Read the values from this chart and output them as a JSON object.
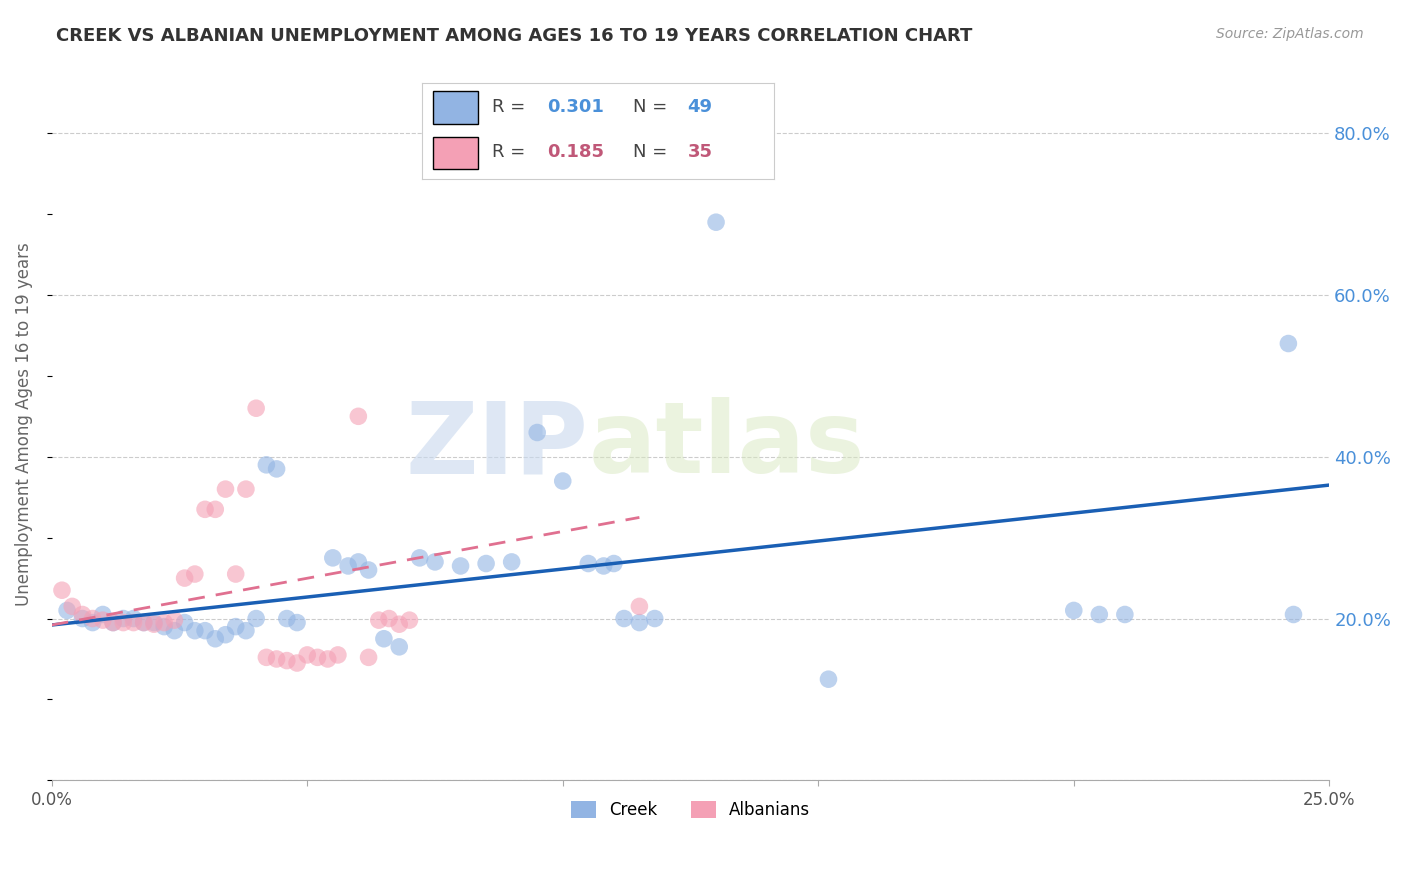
{
  "title": "CREEK VS ALBANIAN UNEMPLOYMENT AMONG AGES 16 TO 19 YEARS CORRELATION CHART",
  "source": "Source: ZipAtlas.com",
  "ylabel": "Unemployment Among Ages 16 to 19 years",
  "xlim": [
    0.0,
    0.25
  ],
  "ylim": [
    0.0,
    0.88
  ],
  "xticks": [
    0.0,
    0.05,
    0.1,
    0.15,
    0.2,
    0.25
  ],
  "xtick_labels": [
    "0.0%",
    "",
    "",
    "",
    "",
    "25.0%"
  ],
  "yticks_right": [
    0.0,
    0.2,
    0.4,
    0.6,
    0.8
  ],
  "ytick_labels_right": [
    "",
    "20.0%",
    "40.0%",
    "60.0%",
    "80.0%"
  ],
  "legend_R_creek": "0.301",
  "legend_N_creek": "49",
  "legend_R_albanian": "0.185",
  "legend_N_albanian": "35",
  "creek_color": "#92b4e3",
  "albanian_color": "#f4a0b5",
  "trend_creek_color": "#1a5fb4",
  "trend_albanian_color": "#e07090",
  "background_color": "#ffffff",
  "grid_color": "#cccccc",
  "watermark_zip": "ZIP",
  "watermark_atlas": "atlas",
  "creek_scatter": [
    [
      0.003,
      0.21
    ],
    [
      0.006,
      0.2
    ],
    [
      0.008,
      0.195
    ],
    [
      0.01,
      0.205
    ],
    [
      0.012,
      0.195
    ],
    [
      0.014,
      0.2
    ],
    [
      0.016,
      0.2
    ],
    [
      0.018,
      0.195
    ],
    [
      0.02,
      0.195
    ],
    [
      0.022,
      0.19
    ],
    [
      0.024,
      0.185
    ],
    [
      0.026,
      0.195
    ],
    [
      0.028,
      0.185
    ],
    [
      0.03,
      0.185
    ],
    [
      0.032,
      0.175
    ],
    [
      0.034,
      0.18
    ],
    [
      0.036,
      0.19
    ],
    [
      0.038,
      0.185
    ],
    [
      0.04,
      0.2
    ],
    [
      0.042,
      0.39
    ],
    [
      0.044,
      0.385
    ],
    [
      0.046,
      0.2
    ],
    [
      0.048,
      0.195
    ],
    [
      0.055,
      0.275
    ],
    [
      0.058,
      0.265
    ],
    [
      0.06,
      0.27
    ],
    [
      0.062,
      0.26
    ],
    [
      0.065,
      0.175
    ],
    [
      0.068,
      0.165
    ],
    [
      0.072,
      0.275
    ],
    [
      0.075,
      0.27
    ],
    [
      0.08,
      0.265
    ],
    [
      0.085,
      0.268
    ],
    [
      0.09,
      0.27
    ],
    [
      0.095,
      0.43
    ],
    [
      0.1,
      0.37
    ],
    [
      0.105,
      0.268
    ],
    [
      0.108,
      0.265
    ],
    [
      0.11,
      0.268
    ],
    [
      0.112,
      0.2
    ],
    [
      0.115,
      0.195
    ],
    [
      0.118,
      0.2
    ],
    [
      0.13,
      0.69
    ],
    [
      0.152,
      0.125
    ],
    [
      0.2,
      0.21
    ],
    [
      0.205,
      0.205
    ],
    [
      0.21,
      0.205
    ],
    [
      0.242,
      0.54
    ],
    [
      0.243,
      0.205
    ]
  ],
  "albanian_scatter": [
    [
      0.002,
      0.235
    ],
    [
      0.004,
      0.215
    ],
    [
      0.006,
      0.205
    ],
    [
      0.008,
      0.2
    ],
    [
      0.01,
      0.198
    ],
    [
      0.012,
      0.195
    ],
    [
      0.014,
      0.195
    ],
    [
      0.016,
      0.195
    ],
    [
      0.018,
      0.195
    ],
    [
      0.02,
      0.193
    ],
    [
      0.022,
      0.195
    ],
    [
      0.024,
      0.198
    ],
    [
      0.026,
      0.25
    ],
    [
      0.028,
      0.255
    ],
    [
      0.03,
      0.335
    ],
    [
      0.032,
      0.335
    ],
    [
      0.034,
      0.36
    ],
    [
      0.036,
      0.255
    ],
    [
      0.038,
      0.36
    ],
    [
      0.04,
      0.46
    ],
    [
      0.042,
      0.152
    ],
    [
      0.044,
      0.15
    ],
    [
      0.046,
      0.148
    ],
    [
      0.048,
      0.145
    ],
    [
      0.05,
      0.155
    ],
    [
      0.052,
      0.152
    ],
    [
      0.054,
      0.15
    ],
    [
      0.056,
      0.155
    ],
    [
      0.06,
      0.45
    ],
    [
      0.062,
      0.152
    ],
    [
      0.064,
      0.198
    ],
    [
      0.066,
      0.2
    ],
    [
      0.068,
      0.193
    ],
    [
      0.07,
      0.198
    ],
    [
      0.115,
      0.215
    ]
  ],
  "creek_trend_x": [
    0.0,
    0.25
  ],
  "creek_trend_y": [
    0.192,
    0.365
  ],
  "albanian_trend_x": [
    0.0,
    0.115
  ],
  "albanian_trend_y": [
    0.192,
    0.325
  ]
}
